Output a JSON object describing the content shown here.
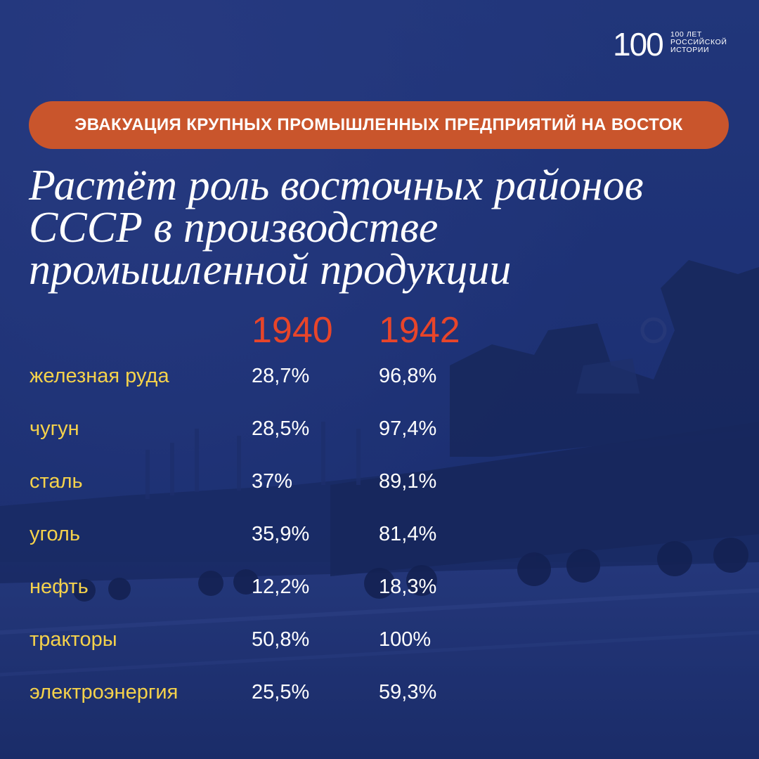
{
  "logo": {
    "number": "100",
    "line1": "100 лет",
    "line2": "российской",
    "line3": "истории"
  },
  "banner": {
    "text": "ЭВАКУАЦИЯ КРУПНЫХ ПРОМЫШЛЕННЫХ ПРЕДПРИЯТИЙ НА ВОСТОК"
  },
  "headline": {
    "line1": "Растёт роль восточных районов",
    "line2": "СССР в производстве",
    "line3": "промышленной продукции"
  },
  "columns": [
    "1940",
    "1942"
  ],
  "rows": [
    {
      "label": "железная руда",
      "v1940": "28,7%",
      "v1942": "96,8%"
    },
    {
      "label": "чугун",
      "v1940": "28,5%",
      "v1942": "97,4%"
    },
    {
      "label": "сталь",
      "v1940": "37%",
      "v1942": "89,1%"
    },
    {
      "label": "уголь",
      "v1940": "35,9%",
      "v1942": "81,4%"
    },
    {
      "label": "нефть",
      "v1940": "12,2%",
      "v1942": "18,3%"
    },
    {
      "label": "тракторы",
      "v1940": "50,8%",
      "v1942": "100%"
    },
    {
      "label": "электроэнергия",
      "v1940": "25,5%",
      "v1942": "59,3%"
    }
  ],
  "colors": {
    "background": "#1e3275",
    "banner": "#c9552c",
    "year": "#e8452a",
    "label": "#f5d24b",
    "value": "#ffffff"
  }
}
